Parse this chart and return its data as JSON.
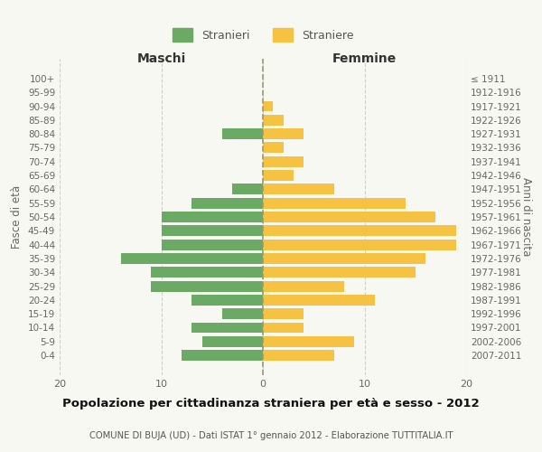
{
  "age_groups": [
    "0-4",
    "5-9",
    "10-14",
    "15-19",
    "20-24",
    "25-29",
    "30-34",
    "35-39",
    "40-44",
    "45-49",
    "50-54",
    "55-59",
    "60-64",
    "65-69",
    "70-74",
    "75-79",
    "80-84",
    "85-89",
    "90-94",
    "95-99",
    "100+"
  ],
  "birth_years": [
    "2007-2011",
    "2002-2006",
    "1997-2001",
    "1992-1996",
    "1987-1991",
    "1982-1986",
    "1977-1981",
    "1972-1976",
    "1967-1971",
    "1962-1966",
    "1957-1961",
    "1952-1956",
    "1947-1951",
    "1942-1946",
    "1937-1941",
    "1932-1936",
    "1927-1931",
    "1922-1926",
    "1917-1921",
    "1912-1916",
    "≤ 1911"
  ],
  "maschi": [
    8,
    6,
    7,
    4,
    7,
    11,
    11,
    14,
    10,
    10,
    10,
    7,
    3,
    0,
    0,
    0,
    4,
    0,
    0,
    0,
    0
  ],
  "femmine": [
    7,
    9,
    4,
    4,
    11,
    8,
    15,
    16,
    19,
    19,
    17,
    14,
    7,
    3,
    4,
    2,
    4,
    2,
    1,
    0,
    0
  ],
  "color_maschi": "#6aaa64",
  "color_femmine": "#f5c242",
  "xlim": 20,
  "title_main": "Popolazione per cittadinanza straniera per età e sesso - 2012",
  "title_sub": "COMUNE DI BUJA (UD) - Dati ISTAT 1° gennaio 2012 - Elaborazione TUTTITALIA.IT",
  "ylabel_left": "Fasce di età",
  "ylabel_right": "Anni di nascita",
  "header_left": "Maschi",
  "header_right": "Femmine",
  "legend_maschi": "Stranieri",
  "legend_femmine": "Straniere",
  "bg_color": "#f8f8f2",
  "grid_color": "#cccccc"
}
